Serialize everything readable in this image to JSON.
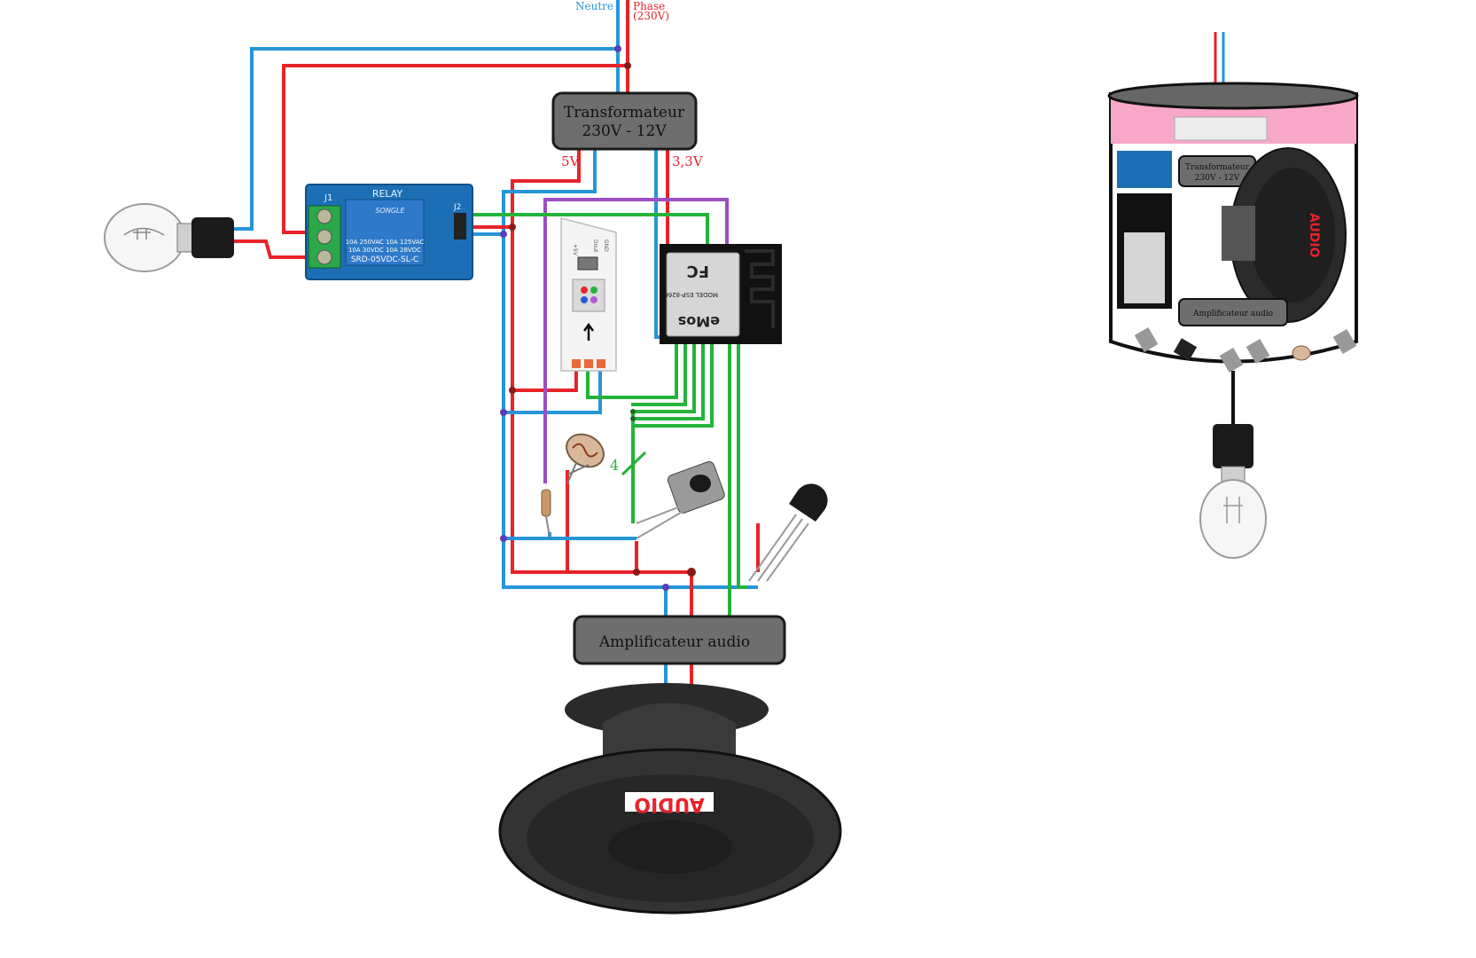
{
  "colors": {
    "neutral": "#2596d8",
    "phase": "#e8232a",
    "signal": "#24b33a",
    "data": "#9b4fc4",
    "box_fill": "#6e6e6e",
    "box_border": "#1a1a1a",
    "relay_blue": "#1c6fb5",
    "esp_black": "#111111",
    "pink_band": "#f7a8c8"
  },
  "labels": {
    "neutre": "Neutre",
    "phase": "Phase",
    "phase_voltage": "(230V)",
    "v5": "5V",
    "v33": "3,3V",
    "bus_count": "4"
  },
  "boxes": {
    "transformer_line1": "Transformateur",
    "transformer_line2": "230V - 12V",
    "amplifier": "Amplificateur audio"
  },
  "relay": {
    "title": "RELAY",
    "j1": "J1",
    "j2": "J2",
    "brand": "SONGLE",
    "spec1": "10A 250VAC  10A 125VAC",
    "spec2": "10A 30VDC   10A 28VDC",
    "model": "SRD-05VDC-SL-C"
  },
  "esp": {
    "text1": "MODEL ESP-8266",
    "text2": "eMos",
    "text3": "FC"
  },
  "led_module": {
    "gnd": "GND",
    "dout": "Dout",
    "v5": "+5V",
    "din": "Din"
  },
  "speaker": {
    "brand": "AUDIO"
  },
  "mini": {
    "transformer_line1": "Transformateur",
    "transformer_line2": "230V - 12V",
    "amplifier": "Amplificateur audio",
    "brand": "AUDIO"
  }
}
